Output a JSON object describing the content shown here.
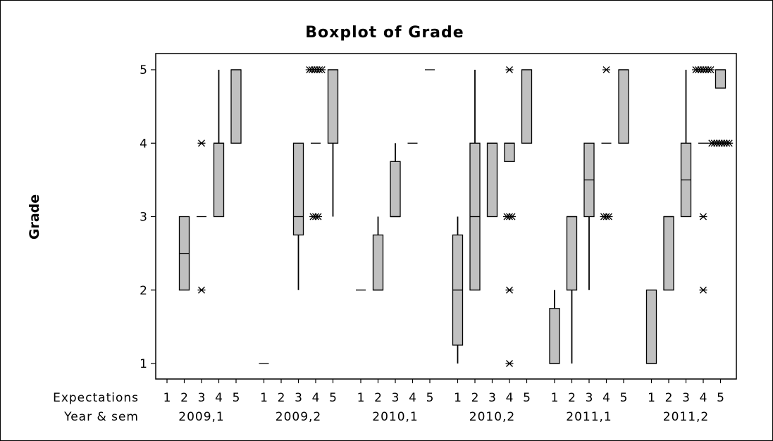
{
  "chart_data": {
    "type": "boxplot",
    "title": "Boxplot of Grade",
    "ylabel": "Grade",
    "ylim": [
      1,
      5
    ],
    "yticks": [
      1,
      2,
      3,
      4,
      5
    ],
    "x_row_labels": [
      "Expectations",
      "Year & sem"
    ],
    "expectations": [
      "1",
      "2",
      "3",
      "4",
      "5"
    ],
    "groups": [
      {
        "name": "2009,1",
        "boxes": [
          null,
          {
            "exp": "2",
            "q1": 2,
            "median": 2.5,
            "q3": 3,
            "whisker_low": 2,
            "whisker_high": 3,
            "outliers": []
          },
          {
            "exp": "3",
            "q1": 3,
            "median": 3,
            "q3": 3,
            "whisker_low": 3,
            "whisker_high": 3,
            "outliers": [
              2,
              4
            ]
          },
          {
            "exp": "4",
            "q1": 3,
            "median": 4,
            "q3": 4,
            "whisker_low": 3,
            "whisker_high": 5,
            "outliers": []
          },
          {
            "exp": "5",
            "q1": 4,
            "median": 5,
            "q3": 5,
            "whisker_low": 4,
            "whisker_high": 5,
            "outliers": []
          }
        ]
      },
      {
        "name": "2009,2",
        "boxes": [
          {
            "exp": "1",
            "q1": 1,
            "median": 1,
            "q3": 1,
            "whisker_low": 1,
            "whisker_high": 1,
            "outliers": []
          },
          null,
          {
            "exp": "3",
            "q1": 2.75,
            "median": 3,
            "q3": 4,
            "whisker_low": 2,
            "whisker_high": 4,
            "outliers": []
          },
          {
            "exp": "4",
            "q1": 4,
            "median": 4,
            "q3": 4,
            "whisker_low": 4,
            "whisker_high": 4,
            "outliers": [
              3,
              3,
              3,
              5,
              5,
              5,
              5,
              5,
              5
            ]
          },
          {
            "exp": "5",
            "q1": 4,
            "median": 5,
            "q3": 5,
            "whisker_low": 3,
            "whisker_high": 5,
            "outliers": []
          }
        ]
      },
      {
        "name": "2010,1",
        "boxes": [
          {
            "exp": "1",
            "q1": 2,
            "median": 2,
            "q3": 2,
            "whisker_low": 2,
            "whisker_high": 2,
            "outliers": []
          },
          {
            "exp": "2",
            "q1": 2,
            "median": 2,
            "q3": 2.75,
            "whisker_low": 2,
            "whisker_high": 3,
            "outliers": []
          },
          {
            "exp": "3",
            "q1": 3,
            "median": 3,
            "q3": 3.75,
            "whisker_low": 3,
            "whisker_high": 4,
            "outliers": []
          },
          {
            "exp": "4",
            "q1": 4,
            "median": 4,
            "q3": 4,
            "whisker_low": 4,
            "whisker_high": 4,
            "outliers": []
          },
          {
            "exp": "5",
            "q1": 5,
            "median": 5,
            "q3": 5,
            "whisker_low": 5,
            "whisker_high": 5,
            "outliers": []
          }
        ]
      },
      {
        "name": "2010,2",
        "boxes": [
          {
            "exp": "1",
            "q1": 1.25,
            "median": 2,
            "q3": 2.75,
            "whisker_low": 1,
            "whisker_high": 3,
            "outliers": []
          },
          {
            "exp": "2",
            "q1": 2,
            "median": 3,
            "q3": 4,
            "whisker_low": 2,
            "whisker_high": 5,
            "outliers": []
          },
          {
            "exp": "3",
            "q1": 3,
            "median": 4,
            "q3": 4,
            "whisker_low": 3,
            "whisker_high": 4,
            "outliers": []
          },
          {
            "exp": "4",
            "q1": 3.75,
            "median": 4,
            "q3": 4,
            "whisker_low": 3.75,
            "whisker_high": 4,
            "outliers": [
              1,
              2,
              3,
              3,
              3,
              5
            ]
          },
          {
            "exp": "5",
            "q1": 4,
            "median": 5,
            "q3": 5,
            "whisker_low": 4,
            "whisker_high": 5,
            "outliers": []
          }
        ]
      },
      {
        "name": "2011,1",
        "boxes": [
          {
            "exp": "1",
            "q1": 1,
            "median": 1,
            "q3": 1.75,
            "whisker_low": 1,
            "whisker_high": 2,
            "outliers": []
          },
          {
            "exp": "2",
            "q1": 2,
            "median": 3,
            "q3": 3,
            "whisker_low": 1,
            "whisker_high": 3,
            "outliers": []
          },
          {
            "exp": "3",
            "q1": 3,
            "median": 3.5,
            "q3": 4,
            "whisker_low": 2,
            "whisker_high": 4,
            "outliers": []
          },
          {
            "exp": "4",
            "q1": 4,
            "median": 4,
            "q3": 4,
            "whisker_low": 4,
            "whisker_high": 4,
            "outliers": [
              3,
              3,
              3,
              5
            ]
          },
          {
            "exp": "5",
            "q1": 4,
            "median": 5,
            "q3": 5,
            "whisker_low": 4,
            "whisker_high": 5,
            "outliers": []
          }
        ]
      },
      {
        "name": "2011,2",
        "boxes": [
          {
            "exp": "1",
            "q1": 1,
            "median": 1,
            "q3": 2,
            "whisker_low": 1,
            "whisker_high": 2,
            "outliers": []
          },
          {
            "exp": "2",
            "q1": 2,
            "median": 3,
            "q3": 3,
            "whisker_low": 2,
            "whisker_high": 3,
            "outliers": []
          },
          {
            "exp": "3",
            "q1": 3,
            "median": 3.5,
            "q3": 4,
            "whisker_low": 3,
            "whisker_high": 5,
            "outliers": []
          },
          {
            "exp": "4",
            "q1": 4,
            "median": 4,
            "q3": 4,
            "whisker_low": 4,
            "whisker_high": 4,
            "outliers": [
              2,
              3,
              5,
              5,
              5,
              5,
              5,
              5,
              5
            ]
          },
          {
            "exp": "5",
            "q1": 4.75,
            "median": 5,
            "q3": 5,
            "whisker_low": 4.75,
            "whisker_high": 5,
            "outliers": [
              4,
              4,
              4,
              4,
              4,
              4,
              4,
              4
            ]
          }
        ]
      }
    ],
    "box_fill": "#c0c0c0",
    "line_color": "#000000",
    "outlier_symbol": "asterisk",
    "grid": false
  }
}
